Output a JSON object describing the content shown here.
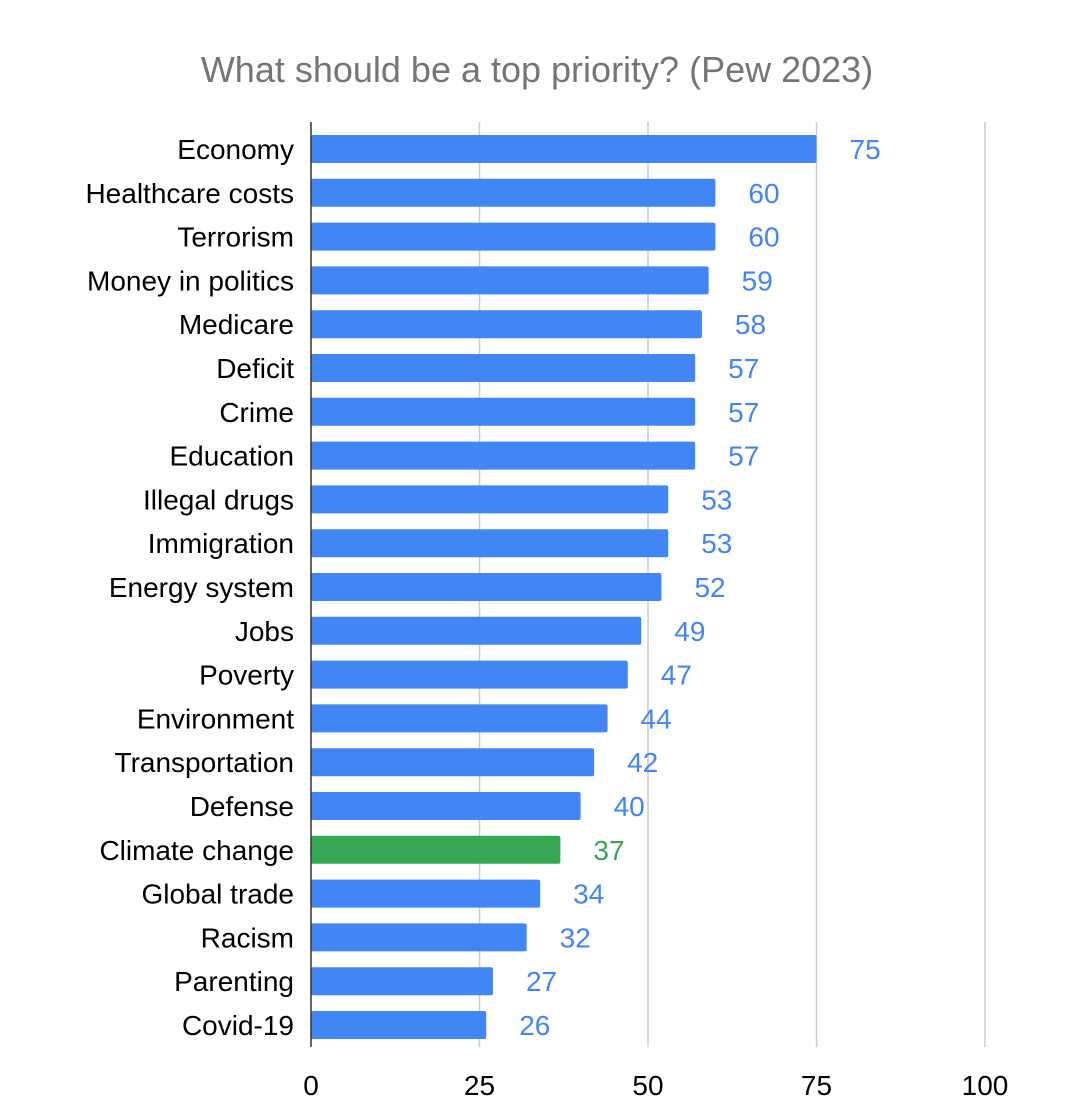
{
  "chart_data": {
    "type": "bar",
    "orientation": "horizontal",
    "title": "What should be a top priority? (Pew 2023)",
    "categories": [
      "Economy",
      "Healthcare costs",
      "Terrorism",
      "Money in politics",
      "Medicare",
      "Deficit",
      "Crime",
      "Education",
      "Illegal drugs",
      "Immigration",
      "Energy system",
      "Jobs",
      "Poverty",
      "Environment",
      "Transportation",
      "Defense",
      "Climate change",
      "Global trade",
      "Racism",
      "Parenting",
      "Covid-19"
    ],
    "values": [
      75,
      60,
      60,
      59,
      58,
      57,
      57,
      57,
      53,
      53,
      52,
      49,
      47,
      44,
      42,
      40,
      37,
      34,
      32,
      27,
      26
    ],
    "highlight_category": "Climate change",
    "xlim": [
      0,
      100
    ],
    "xticks": [
      0,
      25,
      50,
      75,
      100
    ],
    "grid": true,
    "colors": {
      "bar": "#4285f4",
      "highlight": "#34a853",
      "grid": "#cccccc",
      "axis": "#333333"
    }
  }
}
